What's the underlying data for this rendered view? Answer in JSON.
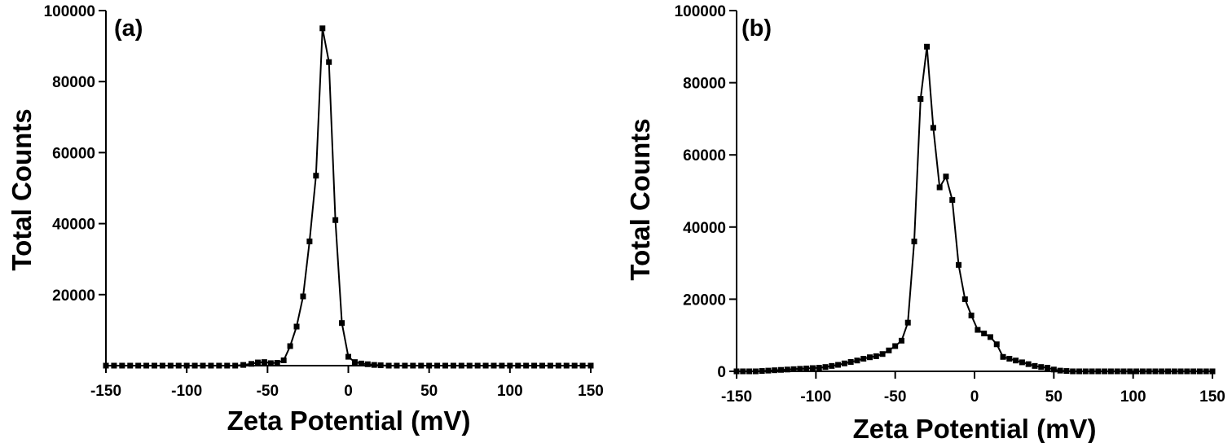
{
  "chart_data": [
    {
      "type": "line",
      "panel_label": "(a)",
      "xlabel": "Zeta Potential (mV)",
      "ylabel": "Total Counts",
      "xlim": [
        -150,
        150
      ],
      "ylim": [
        0,
        100000
      ],
      "xticks": [
        -150,
        -100,
        -50,
        0,
        50,
        100,
        150
      ],
      "yticks": [
        20000,
        40000,
        60000,
        80000,
        100000
      ],
      "ytick_labels": [
        "20000",
        "40000",
        "60000",
        "80000",
        "100000"
      ],
      "grid": false,
      "marker": "square",
      "series": [
        {
          "x": [
            -150,
            -145,
            -140,
            -135,
            -130,
            -125,
            -120,
            -115,
            -110,
            -105,
            -100,
            -95,
            -90,
            -85,
            -80,
            -75,
            -70,
            -65,
            -60,
            -56,
            -52,
            -48,
            -44,
            -40,
            -36,
            -32,
            -28,
            -24,
            -20,
            -16,
            -12,
            -8,
            -4,
            0,
            4,
            8,
            12,
            16,
            20,
            25,
            30,
            35,
            40,
            45,
            50,
            55,
            60,
            65,
            70,
            75,
            80,
            85,
            90,
            95,
            100,
            105,
            110,
            115,
            120,
            125,
            130,
            135,
            140,
            145,
            150
          ],
          "y": [
            0,
            0,
            0,
            0,
            0,
            0,
            0,
            0,
            0,
            0,
            0,
            0,
            0,
            0,
            0,
            0,
            0,
            200,
            500,
            900,
            1000,
            700,
            800,
            1500,
            5500,
            11000,
            19500,
            35000,
            53500,
            95000,
            85500,
            41000,
            12000,
            2500,
            1000,
            600,
            400,
            200,
            100,
            0,
            0,
            0,
            0,
            0,
            0,
            0,
            0,
            0,
            0,
            0,
            0,
            0,
            0,
            0,
            0,
            0,
            0,
            0,
            0,
            0,
            0,
            0,
            0,
            0,
            0
          ]
        }
      ]
    },
    {
      "type": "line",
      "panel_label": "(b)",
      "xlabel": "Zeta Potential (mV)",
      "ylabel": "Total Counts",
      "xlim": [
        -150,
        150
      ],
      "ylim": [
        0,
        100000
      ],
      "xticks": [
        -150,
        -100,
        -50,
        0,
        50,
        100,
        150
      ],
      "yticks": [
        0,
        20000,
        40000,
        60000,
        80000,
        100000
      ],
      "ytick_labels": [
        "0",
        "20000",
        "40000",
        "60000",
        "80000",
        "100000"
      ],
      "grid": false,
      "marker": "square",
      "series": [
        {
          "x": [
            -150,
            -146,
            -142,
            -138,
            -134,
            -130,
            -126,
            -122,
            -118,
            -114,
            -110,
            -106,
            -102,
            -98,
            -94,
            -90,
            -86,
            -82,
            -78,
            -74,
            -70,
            -66,
            -62,
            -58,
            -54,
            -50,
            -46,
            -42,
            -38,
            -34,
            -30,
            -26,
            -22,
            -18,
            -14,
            -10,
            -6,
            -2,
            2,
            6,
            10,
            14,
            18,
            22,
            26,
            30,
            34,
            38,
            42,
            46,
            50,
            54,
            58,
            62,
            66,
            70,
            74,
            78,
            82,
            86,
            90,
            94,
            98,
            102,
            106,
            110,
            114,
            118,
            122,
            126,
            130,
            134,
            138,
            142,
            146,
            150
          ],
          "y": [
            0,
            0,
            0,
            0,
            100,
            200,
            300,
            400,
            500,
            600,
            700,
            800,
            900,
            1000,
            1200,
            1500,
            1800,
            2200,
            2600,
            3000,
            3500,
            3900,
            4200,
            4800,
            5800,
            7000,
            8500,
            13500,
            36000,
            75500,
            90000,
            67500,
            51000,
            54000,
            47500,
            29500,
            20000,
            15500,
            11500,
            10500,
            9500,
            7500,
            4000,
            3500,
            3000,
            2500,
            2000,
            1500,
            1200,
            1000,
            500,
            200,
            100,
            0,
            0,
            0,
            0,
            0,
            0,
            0,
            0,
            0,
            0,
            0,
            0,
            0,
            0,
            0,
            0,
            0,
            0,
            0,
            0,
            0,
            0,
            0
          ]
        }
      ]
    }
  ]
}
